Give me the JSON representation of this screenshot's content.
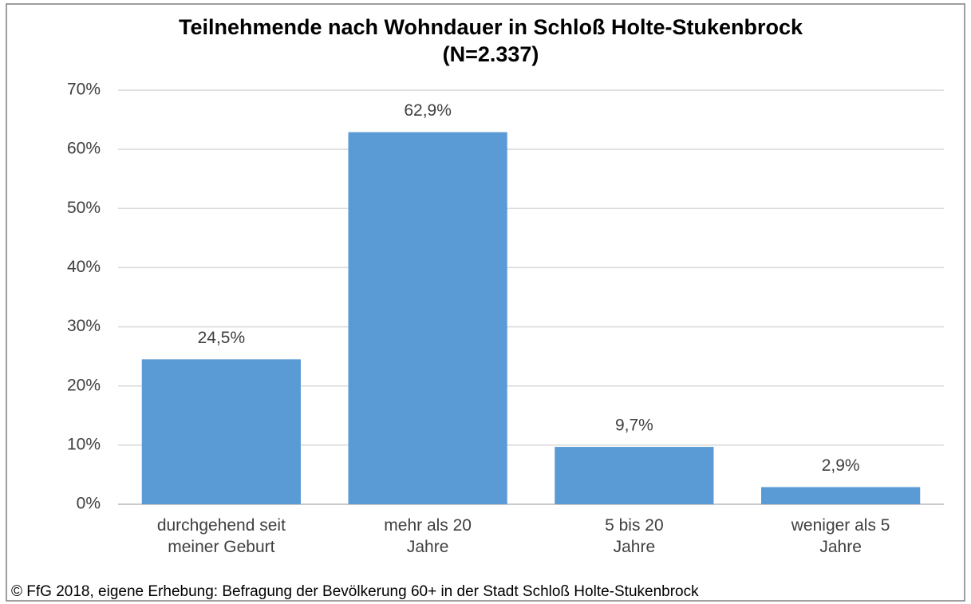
{
  "chart_data": {
    "type": "bar",
    "title": "Teilnehmende nach Wohndauer in Schloß Holte-Stukenbrock",
    "subtitle": "(N=2.337)",
    "categories": [
      "durchgehend seit meiner Geburt",
      "mehr als 20 Jahre",
      "5 bis 20 Jahre",
      "weniger als 5 Jahre"
    ],
    "values": [
      24.5,
      62.9,
      9.7,
      2.9
    ],
    "value_labels": [
      "24,5%",
      "62,9%",
      "9,7%",
      "2,9%"
    ],
    "color": "#5b9bd5",
    "ylim": [
      0,
      70
    ],
    "yticks": [
      {
        "value": 0,
        "label": "0%"
      },
      {
        "value": 10,
        "label": "10%"
      },
      {
        "value": 20,
        "label": "20%"
      },
      {
        "value": 30,
        "label": "30%"
      },
      {
        "value": 40,
        "label": "40%"
      },
      {
        "value": 50,
        "label": "50%"
      },
      {
        "value": 60,
        "label": "60%"
      },
      {
        "value": 70,
        "label": "70%"
      }
    ],
    "grid": true,
    "source": "© FfG 2018, eigene Erhebung: Befragung der Bevölkerung  60+ in der Stadt Schloß Holte-Stukenbrock"
  }
}
